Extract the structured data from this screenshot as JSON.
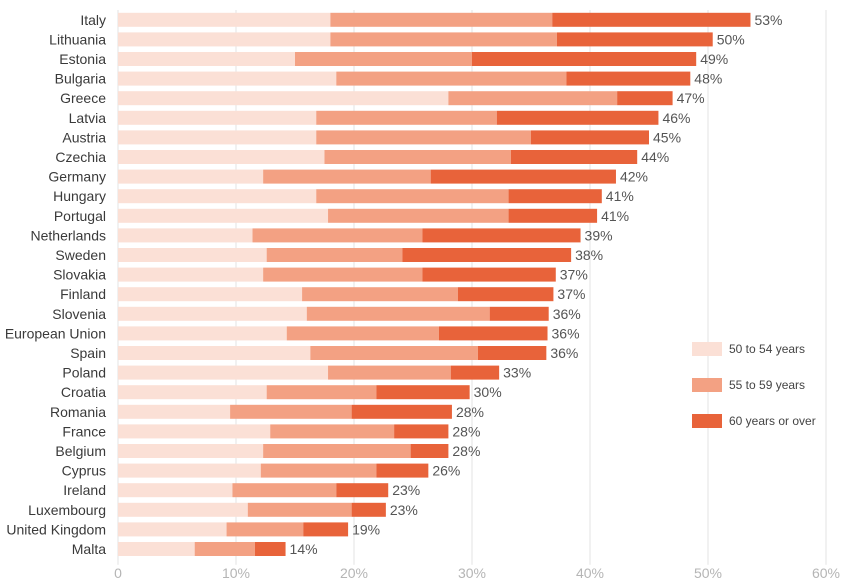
{
  "chart_data": {
    "type": "bar",
    "orientation": "horizontal",
    "stacked": true,
    "categories": [
      "Italy",
      "Lithuania",
      "Estonia",
      "Bulgaria",
      "Greece",
      "Latvia",
      "Austria",
      "Czechia",
      "Germany",
      "Hungary",
      "Portugal",
      "Netherlands",
      "Sweden",
      "Slovakia",
      "Finland",
      "Slovenia",
      "European Union",
      "Spain",
      "Poland",
      "Croatia",
      "Romania",
      "France",
      "Belgium",
      "Cyprus",
      "Ireland",
      "Luxembourg",
      "United Kingdom",
      "Malta"
    ],
    "series": [
      {
        "name": "50 to 54 years",
        "color": "#fbe0d6",
        "values": [
          18.0,
          18.0,
          15.0,
          18.5,
          28.0,
          16.8,
          16.8,
          17.5,
          12.3,
          16.8,
          17.8,
          11.4,
          12.6,
          12.3,
          15.6,
          16.0,
          14.3,
          16.3,
          17.8,
          12.6,
          9.5,
          12.9,
          12.3,
          12.1,
          9.7,
          11.0,
          9.2,
          6.5
        ]
      },
      {
        "name": "55 to 59 years",
        "color": "#f3a183",
        "values": [
          18.8,
          19.2,
          15.0,
          19.5,
          14.3,
          15.3,
          18.2,
          15.8,
          14.2,
          16.3,
          15.3,
          14.4,
          11.5,
          13.5,
          13.2,
          15.5,
          12.9,
          14.2,
          10.4,
          9.3,
          10.3,
          10.5,
          12.5,
          9.8,
          8.8,
          8.8,
          6.5,
          5.1
        ]
      },
      {
        "name": "60 years or over",
        "color": "#e8633a",
        "values": [
          16.8,
          13.2,
          19.0,
          10.5,
          4.7,
          13.7,
          10.0,
          10.7,
          15.7,
          7.9,
          7.5,
          13.4,
          14.3,
          11.3,
          8.1,
          5.0,
          9.2,
          5.8,
          4.1,
          7.9,
          8.5,
          4.6,
          3.2,
          4.4,
          4.4,
          2.9,
          3.8,
          2.6
        ]
      }
    ],
    "totals": [
      "53%",
      "50%",
      "49%",
      "48%",
      "47%",
      "46%",
      "45%",
      "44%",
      "42%",
      "41%",
      "41%",
      "39%",
      "38%",
      "37%",
      "37%",
      "36%",
      "36%",
      "36%",
      "33%",
      "30%",
      "28%",
      "28%",
      "28%",
      "26%",
      "23%",
      "23%",
      "19%",
      "14%"
    ],
    "x_ticks": [
      "0",
      "10%",
      "20%",
      "30%",
      "40%",
      "50%",
      "60%"
    ],
    "xlim": [
      0,
      60
    ],
    "grid": "vertical",
    "legend_position": "right"
  }
}
